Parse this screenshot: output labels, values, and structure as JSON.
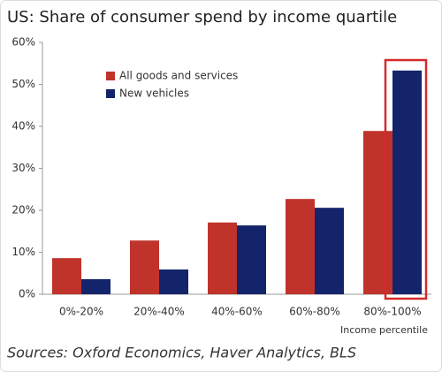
{
  "chart_data": {
    "type": "bar",
    "title": "US: Share of consumer spend by income quartile",
    "source": "Sources: Oxford Economics, Haver Analytics, BLS",
    "x_label": "Income percentile",
    "categories": [
      "0%-20%",
      "20%-40%",
      "40%-60%",
      "60%-80%",
      "80%-100%"
    ],
    "series": [
      {
        "name": "All goods and services",
        "color": "#c0332b",
        "values": [
          8.6,
          12.8,
          17.1,
          22.7,
          38.9
        ]
      },
      {
        "name": "New vehicles",
        "color": "#13246b",
        "values": [
          3.6,
          5.9,
          16.4,
          20.6,
          53.3
        ]
      }
    ],
    "ylim": [
      0,
      60
    ],
    "yticks": [
      {
        "value": 0,
        "label": "0%"
      },
      {
        "value": 10,
        "label": "10%"
      },
      {
        "value": 20,
        "label": "20%"
      },
      {
        "value": 30,
        "label": "30%"
      },
      {
        "value": 40,
        "label": "40%"
      },
      {
        "value": 50,
        "label": "50%"
      },
      {
        "value": 60,
        "label": "60%"
      }
    ]
  }
}
